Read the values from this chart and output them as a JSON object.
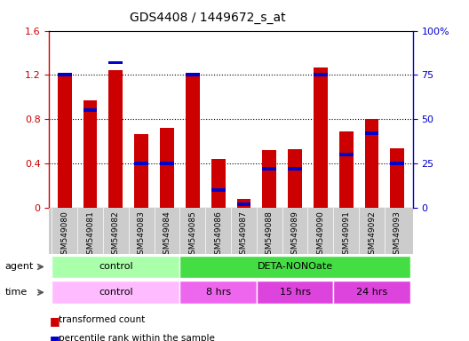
{
  "title": "GDS4408 / 1449672_s_at",
  "samples": [
    "GSM549080",
    "GSM549081",
    "GSM549082",
    "GSM549083",
    "GSM549084",
    "GSM549085",
    "GSM549086",
    "GSM549087",
    "GSM549088",
    "GSM549089",
    "GSM549090",
    "GSM549091",
    "GSM549092",
    "GSM549093"
  ],
  "red_values": [
    1.22,
    0.97,
    1.24,
    0.67,
    0.72,
    1.2,
    0.44,
    0.08,
    0.52,
    0.53,
    1.27,
    0.69,
    0.8,
    0.54
  ],
  "blue_values_pct": [
    75,
    55,
    82,
    25,
    25,
    75,
    10,
    2,
    22,
    22,
    75,
    30,
    42,
    25
  ],
  "ylim_left": [
    0,
    1.6
  ],
  "ylim_right": [
    0,
    100
  ],
  "yticks_left": [
    0,
    0.4,
    0.8,
    1.2,
    1.6
  ],
  "yticks_right": [
    0,
    25,
    50,
    75,
    100
  ],
  "ytick_labels_right": [
    "0",
    "25",
    "50",
    "75",
    "100%"
  ],
  "bar_width": 0.55,
  "red_color": "#cc0000",
  "blue_color": "#0000cc",
  "agent_row": [
    {
      "label": "control",
      "start": 0,
      "end": 5,
      "color": "#aaffaa"
    },
    {
      "label": "DETA-NONOate",
      "start": 5,
      "end": 14,
      "color": "#44dd44"
    }
  ],
  "time_row": [
    {
      "label": "control",
      "start": 0,
      "end": 5,
      "color": "#ffbbff"
    },
    {
      "label": "8 hrs",
      "start": 5,
      "end": 8,
      "color": "#ee66ee"
    },
    {
      "label": "15 hrs",
      "start": 8,
      "end": 11,
      "color": "#dd44dd"
    },
    {
      "label": "24 hrs",
      "start": 11,
      "end": 14,
      "color": "#dd44dd"
    }
  ],
  "legend_red": "transformed count",
  "legend_blue": "percentile rank within the sample",
  "left_axis_color": "#cc0000",
  "right_axis_color": "#0000cc",
  "tick_bg_color": "#cccccc"
}
